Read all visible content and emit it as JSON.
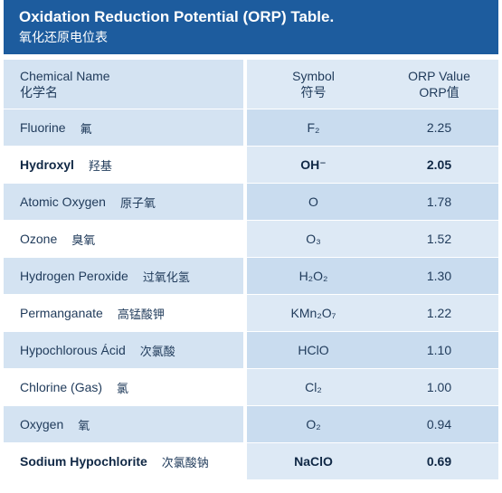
{
  "title": {
    "en": "Oxidation Reduction Potential (ORP) Table.",
    "zh": "氧化还原电位表"
  },
  "header": {
    "name_en": "Chemical Name",
    "name_zh": "化学名",
    "symbol_en": "Symbol",
    "symbol_zh": "符号",
    "orp_en": "ORP Value",
    "orp_zh": "ORP值"
  },
  "rows": [
    {
      "name": "Fluorine",
      "zh": "氟",
      "symbol": "F₂",
      "orp": "2.25",
      "bold": false
    },
    {
      "name": "Hydroxyl",
      "zh": "羟基",
      "symbol": "OH⁻",
      "orp": "2.05",
      "bold": true
    },
    {
      "name": "Atomic Oxygen",
      "zh": "原子氧",
      "symbol": "O",
      "orp": "1.78",
      "bold": false
    },
    {
      "name": "Ozone",
      "zh": "臭氧",
      "symbol": "O₃",
      "orp": "1.52",
      "bold": false
    },
    {
      "name": "Hydrogen Peroxide",
      "zh": "过氧化氢",
      "symbol": "H₂O₂",
      "orp": "1.30",
      "bold": false
    },
    {
      "name": "Permanganate",
      "zh": "高锰酸钾",
      "symbol": "KMn₂O₇",
      "orp": "1.22",
      "bold": false
    },
    {
      "name": "Hypochlorous Ácid",
      "zh": "次氯酸",
      "symbol": "HClO",
      "orp": "1.10",
      "bold": false
    },
    {
      "name": "Chlorine (Gas)",
      "zh": "氯",
      "symbol": "Cl₂",
      "orp": "1.00",
      "bold": false
    },
    {
      "name": "Oxygen",
      "zh": "氧",
      "symbol": "O₂",
      "orp": "0.94",
      "bold": false
    },
    {
      "name": "Sodium Hypochlorite",
      "zh": "次氯酸钠",
      "symbol": "NaClO",
      "orp": "0.69",
      "bold": true
    }
  ],
  "colors": {
    "title_bar": "#1d5c9e",
    "row_light": "#d4e3f2",
    "row_white": "#ffffff",
    "text": "#1f3a5a"
  }
}
